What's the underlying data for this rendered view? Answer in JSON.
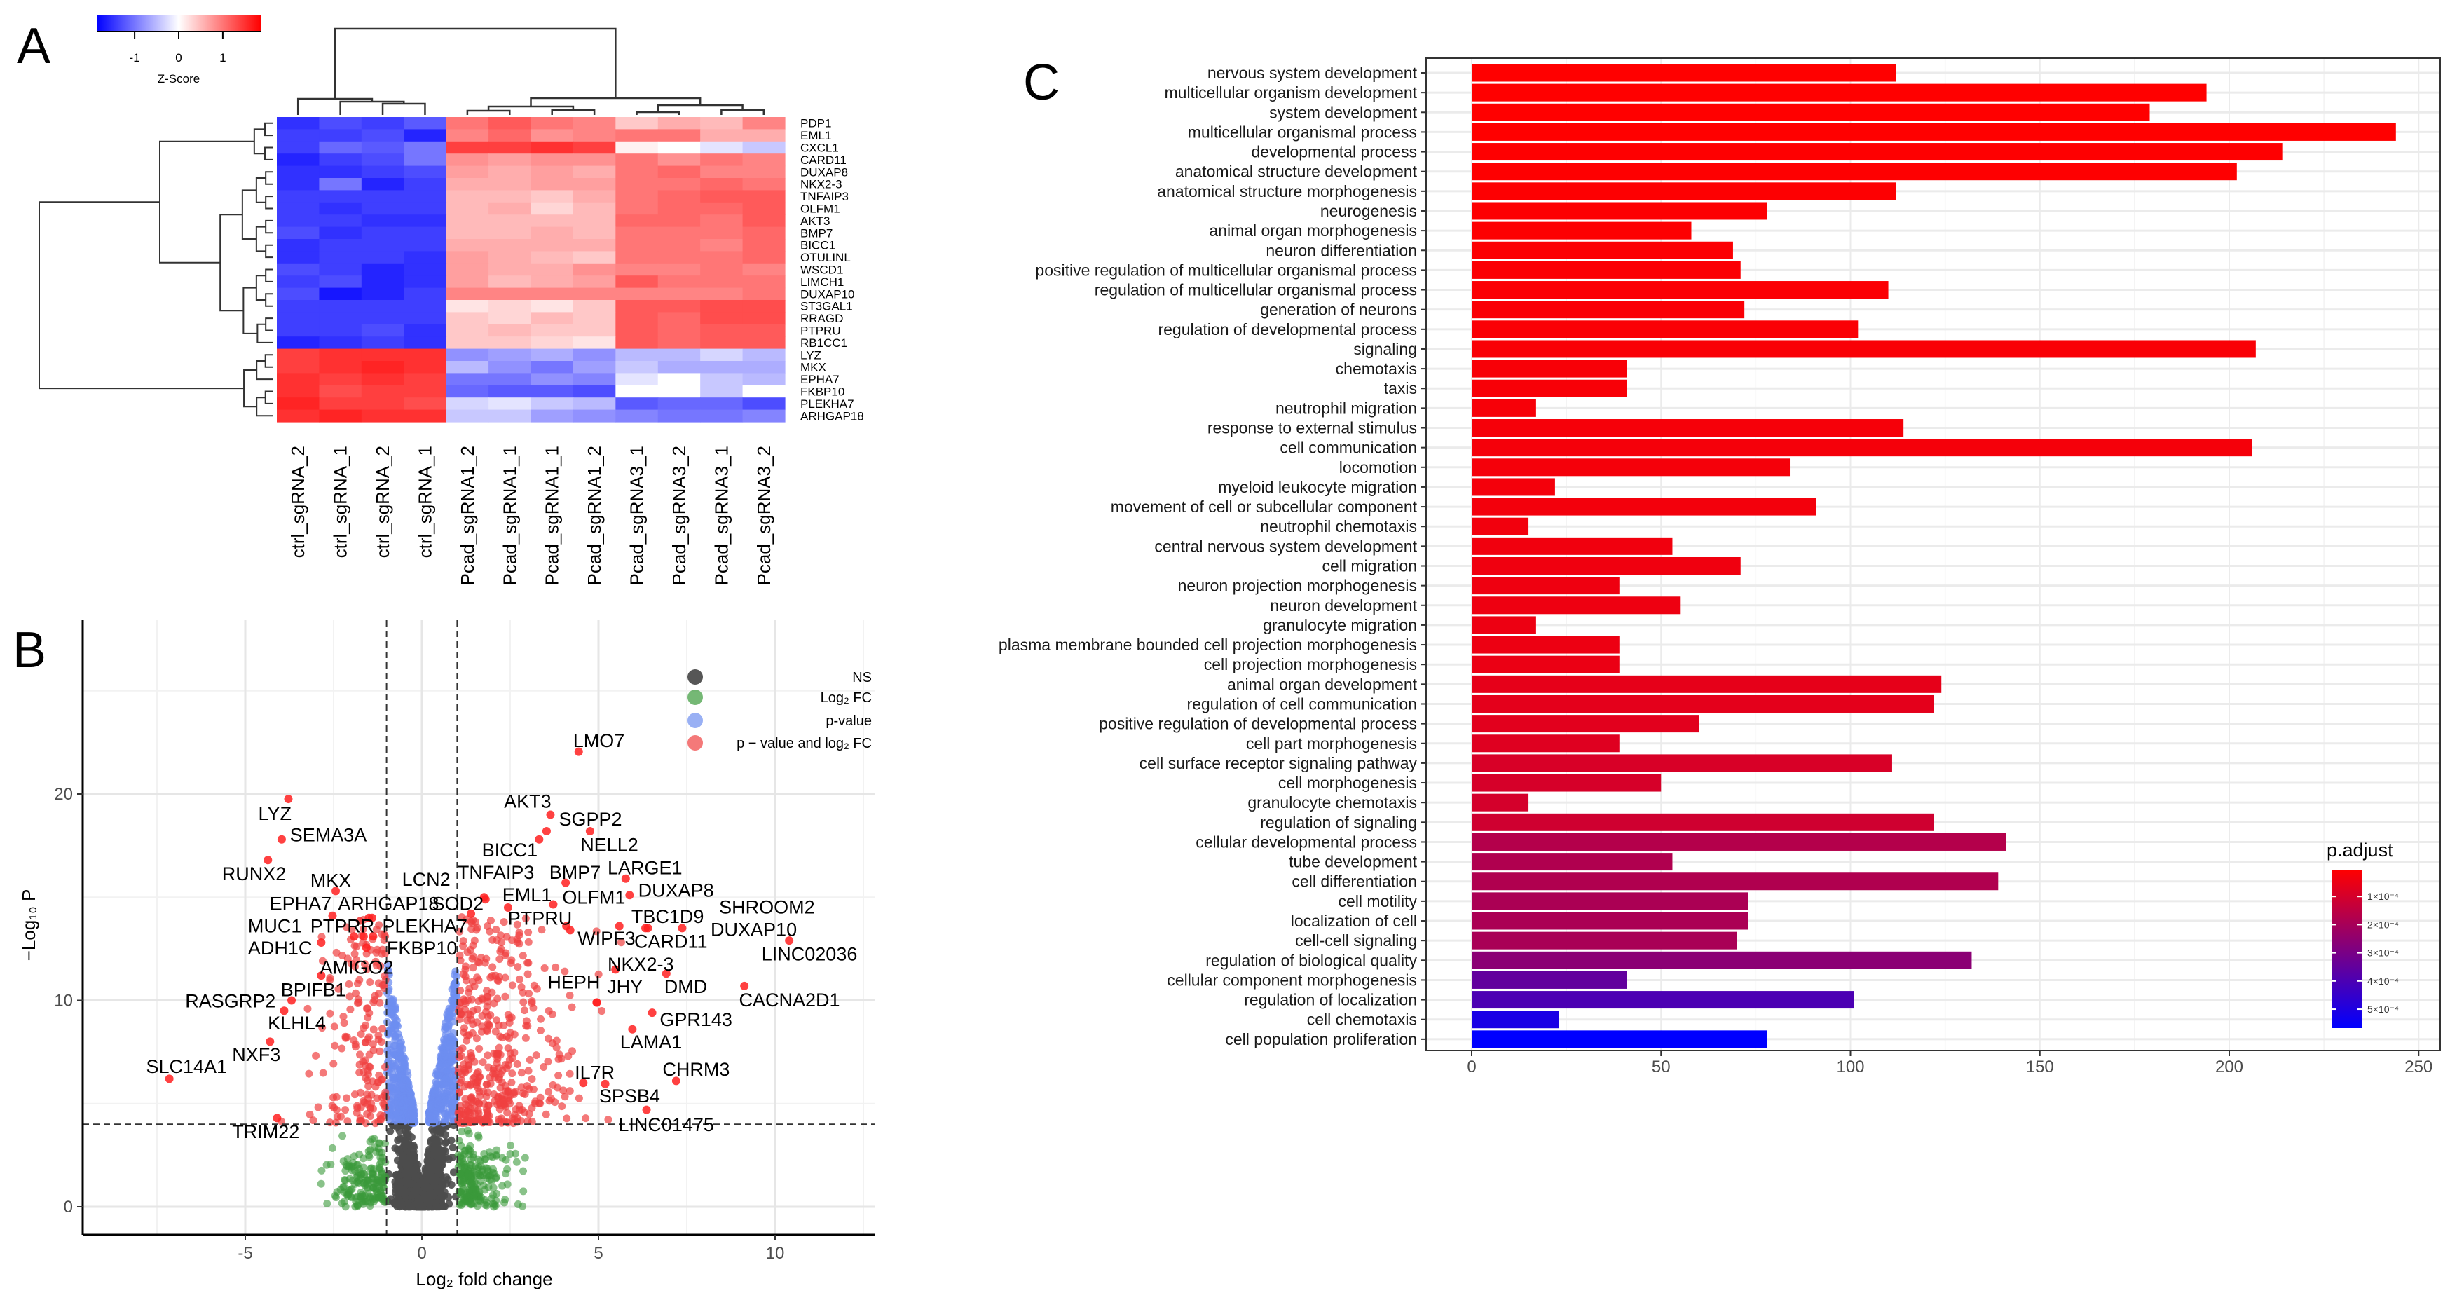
{
  "panels": {
    "a": "A",
    "b": "B",
    "c": "C"
  },
  "chart_data": [
    {
      "type": "heatmap",
      "panel": "A",
      "rows": [
        "PDP1",
        "EML1",
        "CXCL1",
        "CARD11",
        "DUXAP8",
        "NKX2-3",
        "TNFAIP3",
        "OLFM1",
        "AKT3",
        "BMP7",
        "BICC1",
        "OTULINL",
        "WSCD1",
        "LIMCH1",
        "DUXAP10",
        "ST3GAL1",
        "RRAGD",
        "PTPRU",
        "RB1CC1",
        "LYZ",
        "MKX",
        "EPHA7",
        "FKBP10",
        "PLEKHA7",
        "ARHGAP18"
      ],
      "columns": [
        "ctrl_sgRNA_2",
        "ctrl_sgRNA_1",
        "ctrl_sgRNA_2",
        "ctrl_sgRNA_1",
        "Pcad_sgRNA1_2",
        "Pcad_sgRNA1_1",
        "Pcad_sgRNA1_1",
        "Pcad_sgRNA1_2",
        "Pcad_sgRNA3_1",
        "Pcad_sgRNA3_2",
        "Pcad_sgRNA3_1",
        "Pcad_sgRNA3_2"
      ],
      "values": [
        [
          -1.5,
          -1.3,
          -1.4,
          -1.2,
          1.0,
          1.2,
          1.0,
          0.9,
          0.4,
          0.6,
          0.5,
          0.9
        ],
        [
          -1.4,
          -1.4,
          -1.3,
          -1.6,
          0.9,
          1.1,
          0.8,
          0.9,
          1.0,
          1.0,
          0.6,
          0.6
        ],
        [
          -1.4,
          -1.1,
          -1.2,
          -1.0,
          1.4,
          1.4,
          1.5,
          1.4,
          0.1,
          0.0,
          -0.2,
          -0.4
        ],
        [
          -1.6,
          -1.4,
          -1.3,
          -1.0,
          0.8,
          0.7,
          0.8,
          0.8,
          1.0,
          0.8,
          1.0,
          0.9
        ],
        [
          -1.5,
          -1.5,
          -1.4,
          -1.3,
          0.7,
          0.6,
          0.7,
          0.6,
          1.0,
          1.1,
          0.9,
          0.9
        ],
        [
          -1.5,
          -1.0,
          -1.6,
          -1.4,
          0.6,
          0.6,
          0.7,
          0.7,
          1.0,
          1.0,
          1.1,
          1.0
        ],
        [
          -1.4,
          -1.4,
          -1.4,
          -1.4,
          0.5,
          0.5,
          0.4,
          0.6,
          1.0,
          1.1,
          1.2,
          1.2
        ],
        [
          -1.4,
          -1.5,
          -1.4,
          -1.4,
          0.5,
          0.6,
          0.3,
          0.5,
          1.0,
          1.1,
          1.1,
          1.2
        ],
        [
          -1.4,
          -1.4,
          -1.5,
          -1.5,
          0.5,
          0.5,
          0.5,
          0.5,
          1.1,
          1.1,
          1.0,
          1.2
        ],
        [
          -1.3,
          -1.5,
          -1.4,
          -1.4,
          0.5,
          0.5,
          0.6,
          0.5,
          1.0,
          1.0,
          1.0,
          1.1
        ],
        [
          -1.5,
          -1.4,
          -1.4,
          -1.4,
          0.6,
          0.6,
          0.6,
          0.6,
          1.0,
          1.0,
          0.9,
          1.1
        ],
        [
          -1.5,
          -1.4,
          -1.4,
          -1.5,
          0.7,
          0.6,
          0.5,
          0.4,
          1.0,
          1.0,
          1.0,
          1.1
        ],
        [
          -1.3,
          -1.4,
          -1.6,
          -1.5,
          0.7,
          0.6,
          0.6,
          0.8,
          0.9,
          0.9,
          1.0,
          0.9
        ],
        [
          -1.4,
          -1.3,
          -1.6,
          -1.5,
          0.7,
          0.5,
          0.6,
          0.7,
          1.2,
          1.0,
          1.0,
          1.0
        ],
        [
          -1.3,
          -1.7,
          -1.6,
          -1.4,
          0.9,
          0.9,
          0.9,
          0.9,
          0.9,
          0.9,
          0.9,
          1.0
        ],
        [
          -1.4,
          -1.4,
          -1.4,
          -1.4,
          0.2,
          0.3,
          0.2,
          0.4,
          1.2,
          1.2,
          1.3,
          1.3
        ],
        [
          -1.4,
          -1.4,
          -1.4,
          -1.4,
          0.4,
          0.3,
          0.5,
          0.4,
          1.2,
          1.1,
          1.3,
          1.3
        ],
        [
          -1.4,
          -1.4,
          -1.3,
          -1.5,
          0.4,
          0.5,
          0.4,
          0.4,
          1.2,
          1.1,
          1.2,
          1.2
        ],
        [
          -1.6,
          -1.5,
          -1.4,
          -1.5,
          0.4,
          0.4,
          0.3,
          0.2,
          1.2,
          1.1,
          1.2,
          1.2
        ],
        [
          1.4,
          1.5,
          1.5,
          1.5,
          -0.8,
          -0.7,
          -0.6,
          -0.8,
          -0.5,
          -0.5,
          -0.3,
          -0.5
        ],
        [
          1.4,
          1.5,
          1.6,
          1.5,
          -0.5,
          -0.8,
          -1.0,
          -0.7,
          -0.4,
          -0.6,
          -0.6,
          -0.6
        ],
        [
          1.5,
          1.4,
          1.5,
          1.4,
          -1.0,
          -1.0,
          -0.8,
          -0.9,
          -0.2,
          0.0,
          -0.4,
          -0.5
        ],
        [
          1.5,
          1.3,
          1.4,
          1.4,
          -1.1,
          -1.2,
          -1.2,
          -1.3,
          0.0,
          0.0,
          -0.4,
          0.0
        ],
        [
          1.6,
          1.4,
          1.4,
          1.3,
          -0.3,
          -0.2,
          -0.4,
          -0.5,
          -1.2,
          -1.1,
          -1.1,
          -1.3
        ],
        [
          1.5,
          1.6,
          1.5,
          1.5,
          -0.4,
          -0.4,
          -0.7,
          -0.8,
          -0.9,
          -1.0,
          -1.0,
          -0.9
        ]
      ],
      "colorbar": {
        "title": "Z-Score",
        "ticks": [
          -1,
          0,
          1
        ],
        "range": [
          -1.86,
          1.86
        ],
        "low": "#0000ff",
        "mid": "#ffffff",
        "high": "#ff0000"
      }
    },
    {
      "type": "scatter",
      "panel": "B",
      "xlabel": "Log₂ fold change",
      "ylabel": "−Log₁₀ P",
      "xticks": [
        -5,
        0,
        5,
        10
      ],
      "yticks": [
        0,
        10,
        20
      ],
      "xlim": [
        -9.6,
        12.8
      ],
      "ylim": [
        -1.4,
        28.4
      ],
      "thresholds": {
        "log2fc": 1,
        "neg_log10_p": 4
      },
      "legend": [
        {
          "label": "NS",
          "color": "#4d4d4d"
        },
        {
          "label": "Log₂ FC",
          "color": "#3a9a3a"
        },
        {
          "label": "p-value",
          "color": "#6d8ef0"
        },
        {
          "label": "p − value and log₂ FC",
          "color": "#f04040"
        }
      ],
      "legend_position": "top-right",
      "labeled_points": [
        {
          "gene": "LMO7",
          "x": 4.44,
          "y": 22.05
        },
        {
          "gene": "LYZ",
          "x": -3.78,
          "y": 19.76
        },
        {
          "gene": "SEMA3A",
          "x": -3.97,
          "y": 17.8
        },
        {
          "gene": "RUNX2",
          "x": -4.36,
          "y": 16.8
        },
        {
          "gene": "MKX",
          "x": -2.44,
          "y": 15.3
        },
        {
          "gene": "EPHA7",
          "x": -2.53,
          "y": 14.1
        },
        {
          "gene": "ARHGAP18",
          "x": -1.5,
          "y": 14.0
        },
        {
          "gene": "SOD2",
          "x": 1.39,
          "y": 14.2
        },
        {
          "gene": "LCN2",
          "x": 1.76,
          "y": 15.0
        },
        {
          "gene": "TNFAIP3",
          "x": 1.8,
          "y": 14.9
        },
        {
          "gene": "BICC1",
          "x": 3.32,
          "y": 17.8
        },
        {
          "gene": "AKT3",
          "x": 3.64,
          "y": 19.0
        },
        {
          "gene": "SGPP2",
          "x": 4.76,
          "y": 18.2
        },
        {
          "gene": "NELL2",
          "x": 3.53,
          "y": 18.2
        },
        {
          "gene": "BMP7",
          "x": 4.07,
          "y": 15.7
        },
        {
          "gene": "LARGE1",
          "x": 5.77,
          "y": 15.9
        },
        {
          "gene": "DUXAP8",
          "x": 5.88,
          "y": 15.1
        },
        {
          "gene": "EML1",
          "x": 2.44,
          "y": 14.5
        },
        {
          "gene": "OLFM1",
          "x": 3.72,
          "y": 14.65
        },
        {
          "gene": "PTPRU",
          "x": 4.09,
          "y": 13.6
        },
        {
          "gene": "TBC1D9",
          "x": 6.33,
          "y": 13.5
        },
        {
          "gene": "SHROOM2",
          "x": 6.4,
          "y": 13.5
        },
        {
          "gene": "DUXAP10",
          "x": 7.37,
          "y": 13.5
        },
        {
          "gene": "WIPF3",
          "x": 4.2,
          "y": 13.4
        },
        {
          "gene": "CARD11",
          "x": 5.59,
          "y": 13.6
        },
        {
          "gene": "LINC02036",
          "x": 10.4,
          "y": 12.9
        },
        {
          "gene": "NKX2-3",
          "x": 5.48,
          "y": 11.5
        },
        {
          "gene": "HEPH",
          "x": 4.95,
          "y": 9.9
        },
        {
          "gene": "JHY",
          "x": 4.95,
          "y": 9.9
        },
        {
          "gene": "DMD",
          "x": 6.92,
          "y": 11.3
        },
        {
          "gene": "CACNA2D1",
          "x": 9.13,
          "y": 10.7
        },
        {
          "gene": "GPR143",
          "x": 6.52,
          "y": 9.4
        },
        {
          "gene": "LAMA1",
          "x": 5.96,
          "y": 8.6
        },
        {
          "gene": "CHRM3",
          "x": 7.2,
          "y": 6.1
        },
        {
          "gene": "IL7R",
          "x": 4.57,
          "y": 6.0
        },
        {
          "gene": "SPSB4",
          "x": 5.19,
          "y": 5.95
        },
        {
          "gene": "LINC01475",
          "x": 6.36,
          "y": 4.7
        },
        {
          "gene": "TRIM22",
          "x": -4.1,
          "y": 4.3
        },
        {
          "gene": "SLC14A1",
          "x": -7.15,
          "y": 6.2
        },
        {
          "gene": "NXF3",
          "x": -4.3,
          "y": 8.0
        },
        {
          "gene": "KLHL4",
          "x": -3.9,
          "y": 9.5
        },
        {
          "gene": "RASGRP2",
          "x": -3.69,
          "y": 10.0
        },
        {
          "gene": "BPIFB1",
          "x": -2.85,
          "y": 11.2
        },
        {
          "gene": "AMIGO2",
          "x": -1.57,
          "y": 12.55
        },
        {
          "gene": "ADH1C",
          "x": -2.85,
          "y": 12.8
        },
        {
          "gene": "MUC1",
          "x": -1.92,
          "y": 13.1
        },
        {
          "gene": "PTPRR",
          "x": -1.65,
          "y": 13.1
        },
        {
          "gene": "PLEKHA7",
          "x": -1.41,
          "y": 14.0
        },
        {
          "gene": "FKBP10",
          "x": -1.38,
          "y": 13.1
        }
      ]
    },
    {
      "type": "bar",
      "panel": "C",
      "orientation": "horizontal",
      "categories": [
        "nervous system development",
        "multicellular organism development",
        "system development",
        "multicellular organismal process",
        "developmental process",
        "anatomical structure development",
        "anatomical structure morphogenesis",
        "neurogenesis",
        "animal organ morphogenesis",
        "neuron differentiation",
        "positive regulation of multicellular organismal process",
        "regulation of multicellular organismal process",
        "generation of neurons",
        "regulation of developmental process",
        "signaling",
        "chemotaxis",
        "taxis",
        "neutrophil migration",
        "response to external stimulus",
        "cell communication",
        "locomotion",
        "myeloid leukocyte migration",
        "movement of cell or subcellular component",
        "neutrophil chemotaxis",
        "central nervous system development",
        "cell migration",
        "neuron projection morphogenesis",
        "neuron development",
        "granulocyte migration",
        "plasma membrane bounded cell projection morphogenesis",
        "cell projection morphogenesis",
        "animal organ development",
        "regulation of cell communication",
        "positive regulation of developmental process",
        "cell part morphogenesis",
        "cell surface receptor signaling pathway",
        "cell morphogenesis",
        "granulocyte chemotaxis",
        "regulation of signaling",
        "cellular developmental process",
        "tube development",
        "cell differentiation",
        "cell motility",
        "localization of cell",
        "cell-cell signaling",
        "regulation of biological quality",
        "cellular component morphogenesis",
        "regulation of localization",
        "cell chemotaxis",
        "cell population proliferation"
      ],
      "values": [
        112,
        194,
        179,
        244,
        214,
        202,
        112,
        78,
        58,
        69,
        71,
        110,
        72,
        102,
        207,
        41,
        41,
        17,
        114,
        206,
        84,
        22,
        91,
        15,
        53,
        71,
        39,
        55,
        17,
        39,
        39,
        124,
        122,
        60,
        39,
        111,
        50,
        15,
        122,
        141,
        53,
        139,
        73,
        73,
        70,
        132,
        41,
        101,
        23,
        78
      ],
      "p_adjust": [
        5e-06,
        5e-06,
        6e-06,
        6e-06,
        7e-06,
        8e-06,
        9e-06,
        1e-05,
        1e-05,
        1.2e-05,
        1.3e-05,
        1.4e-05,
        1.5e-05,
        1.6e-05,
        1.8e-05,
        2e-05,
        2e-05,
        2.2e-05,
        2.4e-05,
        2.6e-05,
        2.8e-05,
        3e-05,
        3.2e-05,
        3.4e-05,
        3.6e-05,
        3.8e-05,
        4e-05,
        4.2e-05,
        4.5e-05,
        4.5e-05,
        4.8e-05,
        6e-05,
        6.5e-05,
        7e-05,
        7.5e-05,
        9e-05,
        9.5e-05,
        0.0001,
        0.00011,
        0.00017,
        0.00018,
        0.00018,
        0.00019,
        0.00019,
        0.000195,
        0.00026,
        0.00035,
        0.0004,
        0.00051,
        0.000567
      ],
      "xticks": [
        0,
        50,
        100,
        150,
        200,
        250
      ],
      "xlim": [
        -9,
        259
      ],
      "legend": {
        "title": "p.adjust",
        "ticks": [
          "1×10⁻⁴",
          "2×10⁻⁴",
          "3×10⁻⁴",
          "4×10⁻⁴",
          "5×10⁻⁴"
        ],
        "tick_values": [
          0.0001,
          0.0002,
          0.0003,
          0.0004,
          0.0005
        ],
        "range": [
          5e-06,
          0.000567
        ],
        "low_color": "#ff0000",
        "high_color": "#0000ff",
        "position": "right"
      }
    }
  ]
}
